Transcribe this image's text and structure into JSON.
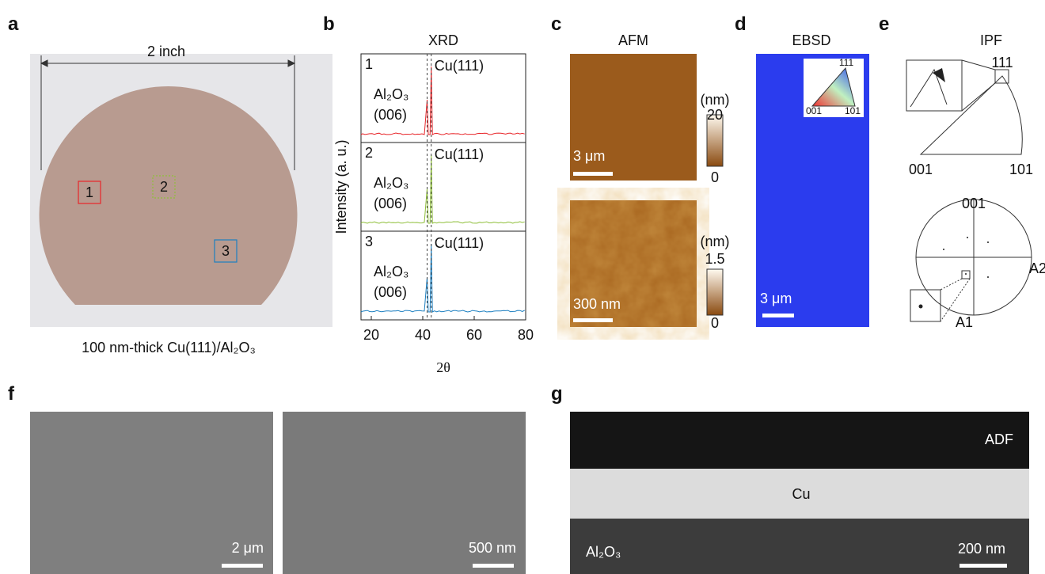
{
  "panels": {
    "a": {
      "label": "a",
      "dimension": "2 inch",
      "caption": "100 nm-thick Cu(111)/Al₂O₃",
      "regions": [
        {
          "name": "1",
          "color": "#e8262a"
        },
        {
          "name": "2",
          "color": "#8fbf3a"
        },
        {
          "name": "3",
          "color": "#1c7fc0"
        }
      ]
    },
    "b": {
      "label": "b",
      "title": "XRD",
      "y_label": "Intensity (a. u.)",
      "x_label": "2θ",
      "xlim": [
        16,
        80
      ],
      "xticks": [
        20,
        40,
        60,
        80
      ],
      "subplots": [
        {
          "name": "1",
          "color": "#e8262a",
          "peak": "Cu(111)",
          "substrate": "Al₂O₃",
          "substrate_plane": "(006)"
        },
        {
          "name": "2",
          "color": "#8fbf3a",
          "peak": "Cu(111)",
          "substrate": "Al₂O₃",
          "substrate_plane": "(006)"
        },
        {
          "name": "3",
          "color": "#1c7fc0",
          "peak": "Cu(111)",
          "substrate": "Al₂O₃",
          "substrate_plane": "(006)"
        }
      ]
    },
    "c": {
      "label": "c",
      "title": "AFM",
      "images": [
        {
          "scale_bar": "3 μm",
          "unit": "(nm)",
          "colorbar_max": 20,
          "colorbar_min": 0
        },
        {
          "scale_bar": "300 nm",
          "unit": "(nm)",
          "colorbar_max": 1.5,
          "colorbar_min": 0
        }
      ]
    },
    "d": {
      "label": "d",
      "title": "EBSD",
      "inset_labels": [
        "111",
        "001",
        "101"
      ],
      "scale_bar": "3 μm"
    },
    "e": {
      "label": "e",
      "title": "IPF",
      "triangle_labels": [
        "111",
        "001",
        "101"
      ],
      "pole_labels": [
        "001",
        "A2",
        "A1"
      ]
    },
    "f": {
      "label": "f",
      "scale_bars": [
        "2 μm",
        "500 nm"
      ]
    },
    "g": {
      "label": "g",
      "layers": [
        "ADF",
        "Cu",
        "Al₂O₃"
      ],
      "scale_bar": "200 nm"
    }
  }
}
